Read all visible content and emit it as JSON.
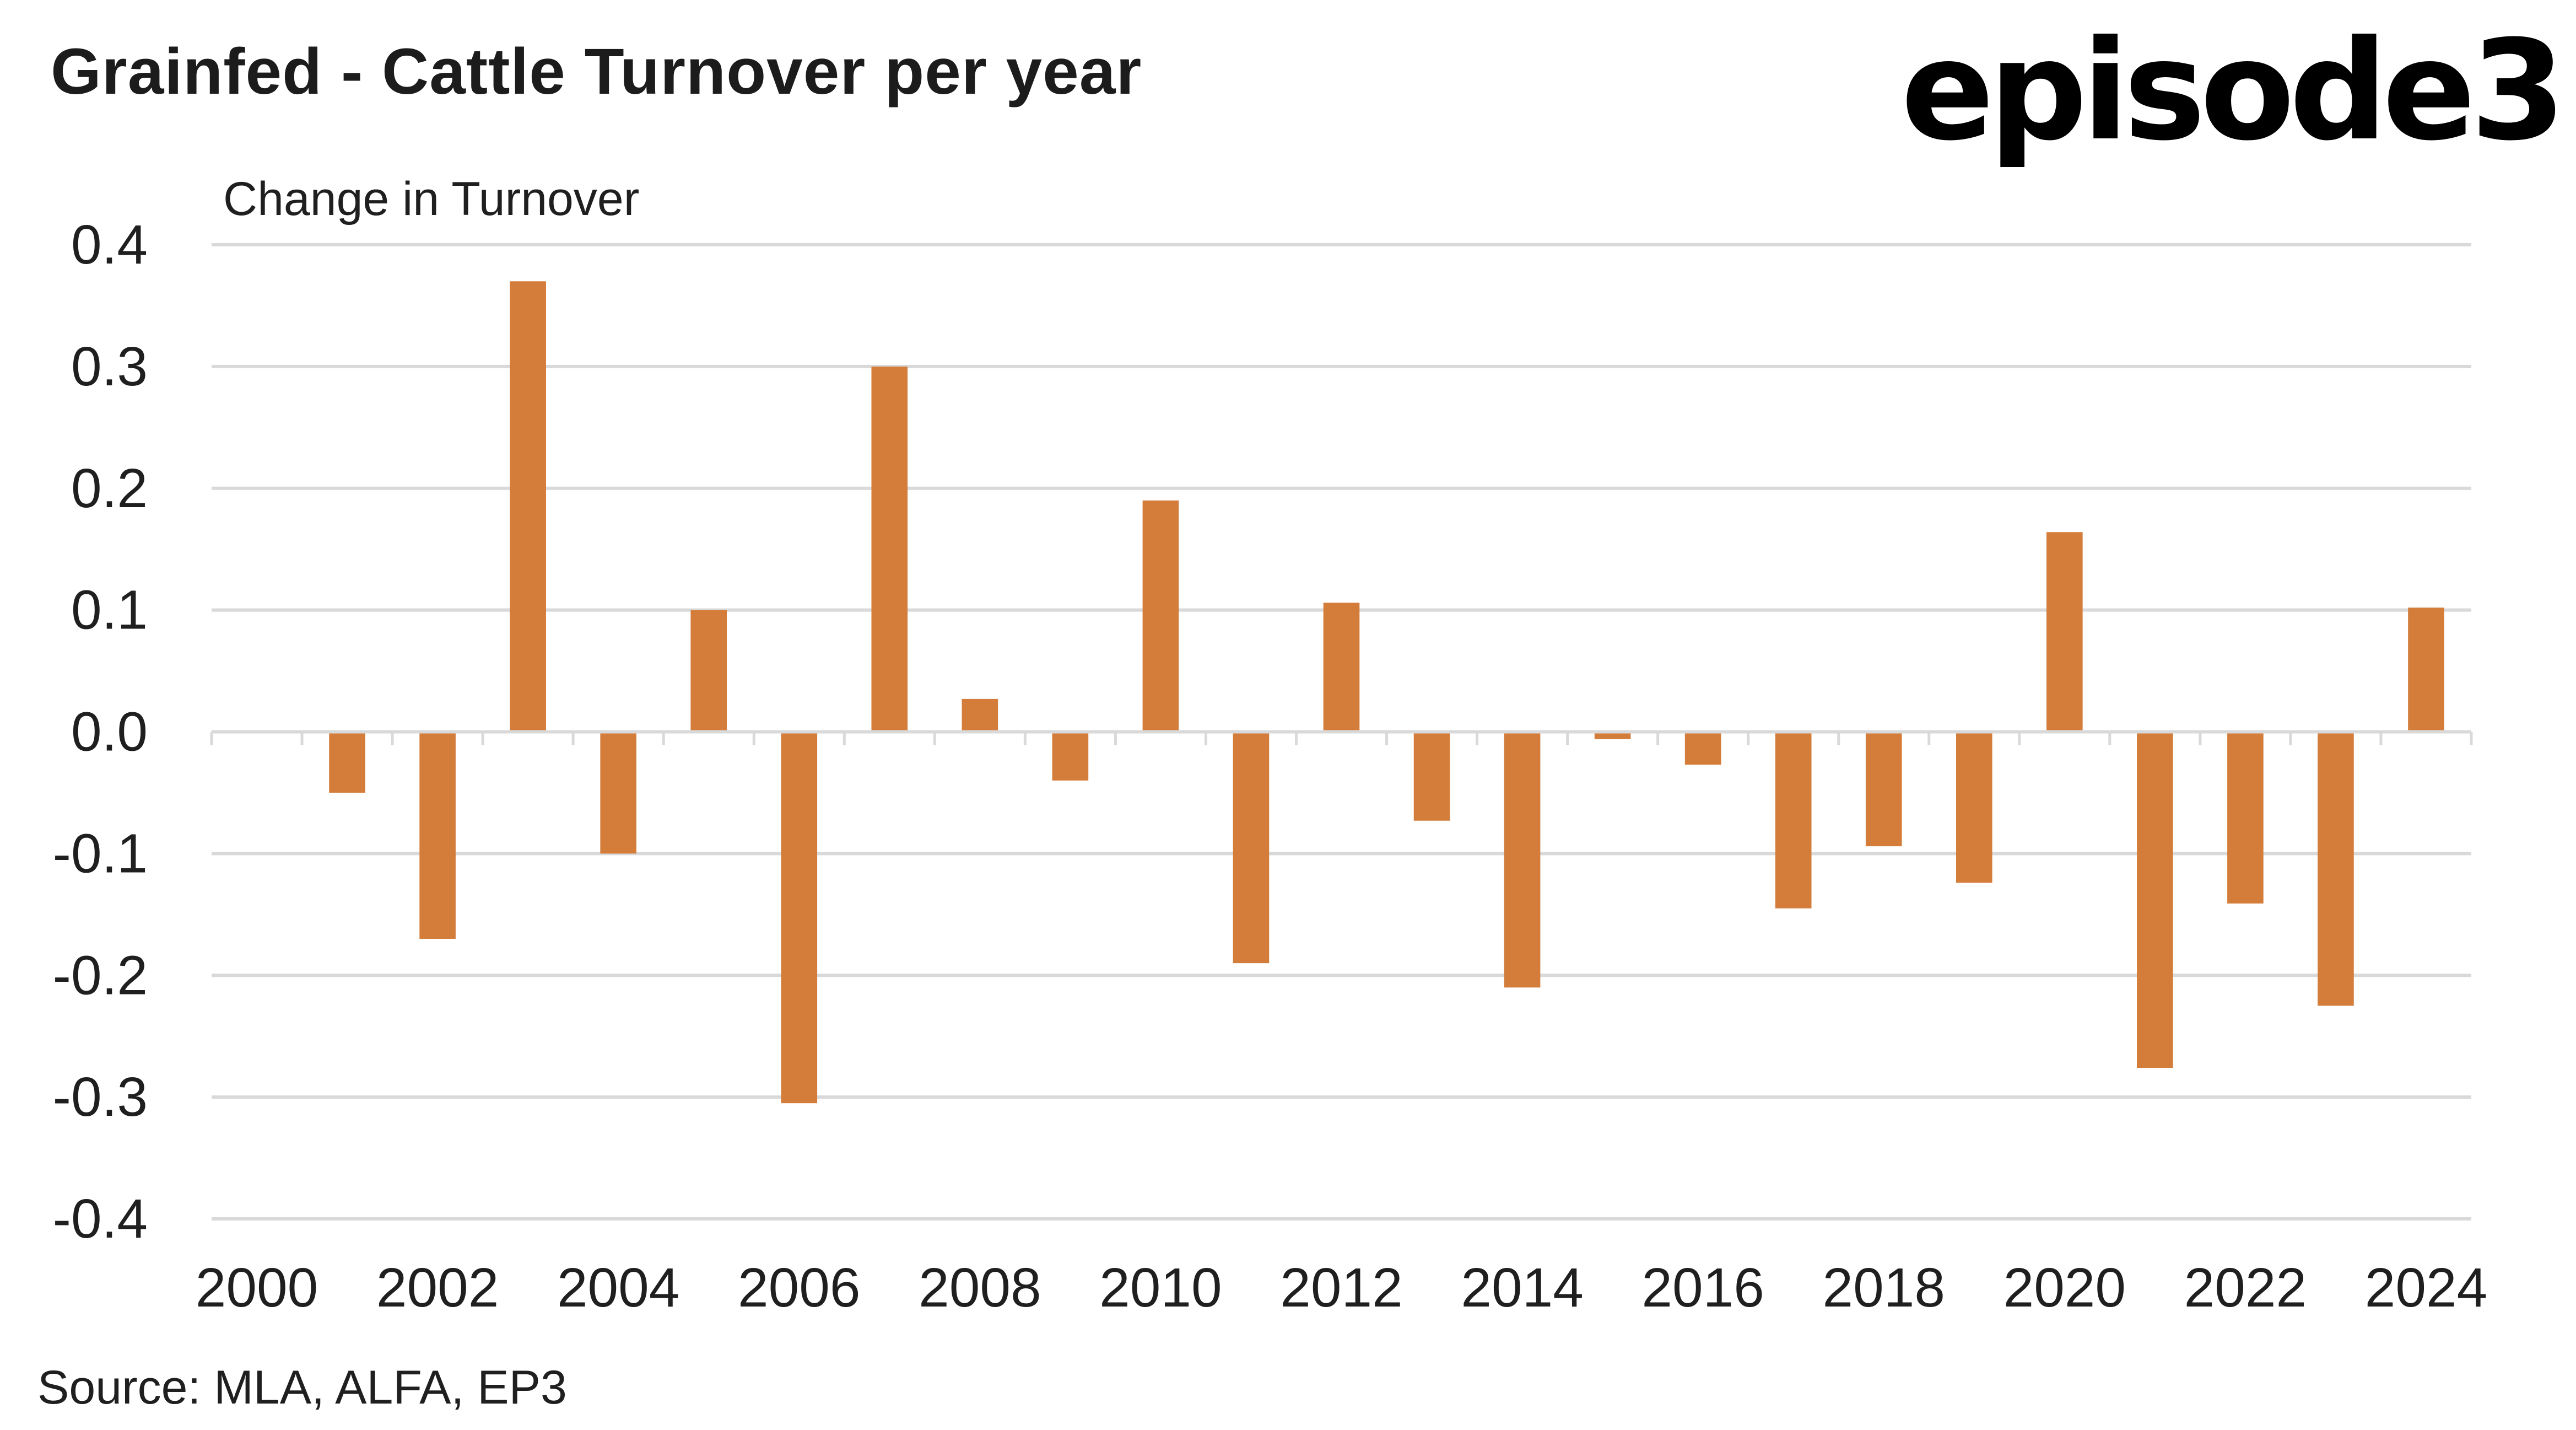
{
  "header": {
    "title": "Grainfed - Cattle Turnover per year",
    "logo_text": "episode3"
  },
  "footer": {
    "source": "Source: MLA, ALFA, EP3"
  },
  "colors": {
    "bar": "#D47D3B",
    "grid": "#D9D9D9",
    "text": "#1F1F1F"
  },
  "chart_data": {
    "type": "bar",
    "title": "Grainfed - Cattle Turnover per year",
    "xlabel": "",
    "ylabel": "Change in Turnover",
    "categories": [
      "2000",
      "2001",
      "2002",
      "2003",
      "2004",
      "2005",
      "2006",
      "2007",
      "2008",
      "2009",
      "2010",
      "2011",
      "2012",
      "2013",
      "2014",
      "2015",
      "2016",
      "2017",
      "2018",
      "2019",
      "2020",
      "2021",
      "2022",
      "2023",
      "2024"
    ],
    "values": [
      null,
      -0.05,
      -0.17,
      0.37,
      -0.1,
      0.1,
      -0.305,
      0.3,
      0.027,
      -0.04,
      0.19,
      -0.19,
      0.106,
      -0.073,
      -0.21,
      -0.006,
      -0.027,
      -0.145,
      -0.094,
      -0.124,
      0.164,
      -0.276,
      -0.141,
      -0.225,
      0.102
    ],
    "ylim": [
      -0.4,
      0.4
    ],
    "yticks": [
      0.4,
      0.3,
      0.2,
      0.1,
      0.0,
      -0.1,
      -0.2,
      -0.3,
      -0.4
    ],
    "ytick_labels": [
      "0.4",
      "0.3",
      "0.2",
      "0.1",
      "0.0",
      "-0.1",
      "-0.2",
      "-0.3",
      "-0.4"
    ],
    "xtick_labels": [
      "2000",
      "2002",
      "2004",
      "2006",
      "2008",
      "2010",
      "2012",
      "2014",
      "2016",
      "2018",
      "2020",
      "2022",
      "2024"
    ],
    "grid": true,
    "legend": "none"
  }
}
